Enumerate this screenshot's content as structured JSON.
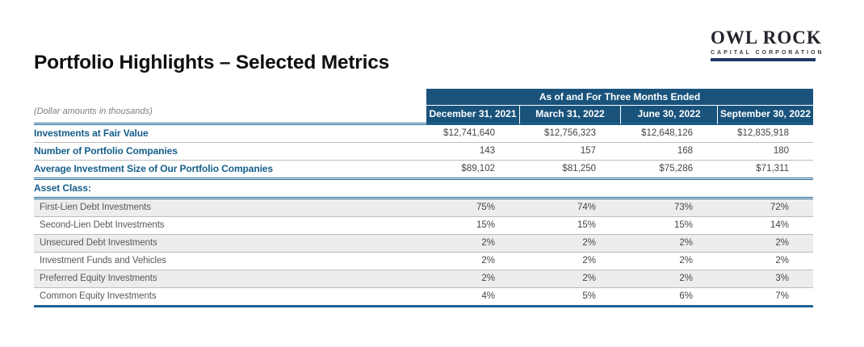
{
  "logo": {
    "name": "OWL ROCK",
    "subtitle": "CAPITAL CORPORATION"
  },
  "page_title": "Portfolio Highlights – Selected Metrics",
  "table": {
    "note": "(Dollar amounts in thousands)",
    "period_header": "As of and For Three Months Ended",
    "columns": [
      "December 31, 2021",
      "March 31, 2022",
      "June 30, 2022",
      "September 30, 2022"
    ],
    "metrics": [
      {
        "label": "Investments at Fair Value",
        "values": [
          "$12,741,640",
          "$12,756,323",
          "$12,648,126",
          "$12,835,918"
        ]
      },
      {
        "label": "Number of Portfolio Companies",
        "values": [
          "143",
          "157",
          "168",
          "180"
        ]
      },
      {
        "label": "Average Investment Size of Our Portfolio Companies",
        "values": [
          "$89,102",
          "$81,250",
          "$75,286",
          "$71,311"
        ]
      }
    ],
    "section_header": "Asset Class:",
    "asset_classes": [
      {
        "label": "First-Lien Debt Investments",
        "values": [
          "75%",
          "74%",
          "73%",
          "72%"
        ]
      },
      {
        "label": "Second-Lien Debt Investments",
        "values": [
          "15%",
          "15%",
          "15%",
          "14%"
        ]
      },
      {
        "label": "Unsecured Debt Investments",
        "values": [
          "2%",
          "2%",
          "2%",
          "2%"
        ]
      },
      {
        "label": "Investment Funds and Vehicles",
        "values": [
          "2%",
          "2%",
          "2%",
          "2%"
        ]
      },
      {
        "label": "Preferred Equity Investments",
        "values": [
          "2%",
          "2%",
          "2%",
          "3%"
        ]
      },
      {
        "label": "Common Equity Investments",
        "values": [
          "4%",
          "5%",
          "6%",
          "7%"
        ]
      }
    ]
  },
  "colors": {
    "header_blue": "#19537C",
    "rule_blue": "#1D6394",
    "label_blue": "#155E8A",
    "logo_navy": "#203864",
    "row_alt_gray": "#EDEDED",
    "body_text_gray": "#595959"
  }
}
